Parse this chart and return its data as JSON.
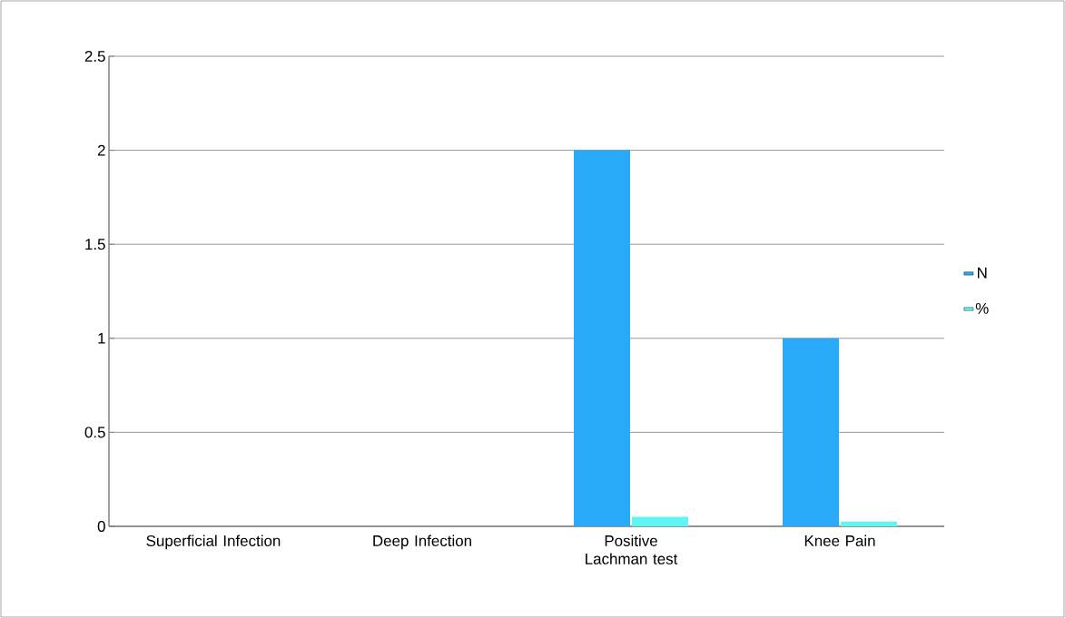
{
  "chart_data": {
    "type": "bar",
    "categories": [
      "Superficial Infection",
      "Deep Infection",
      "Positive Lachman test",
      "Knee Pain"
    ],
    "series": [
      {
        "name": "N",
        "color": "#29aaf8",
        "values": [
          0,
          0,
          2,
          1
        ]
      },
      {
        "name": "%",
        "color": "#5ff5f0",
        "values": [
          0,
          0,
          0.05,
          0.025
        ]
      }
    ],
    "ylim": [
      0,
      2.5
    ],
    "yticks": [
      0,
      0.5,
      1,
      1.5,
      2,
      2.5
    ],
    "grid": "y",
    "legend": "right"
  }
}
